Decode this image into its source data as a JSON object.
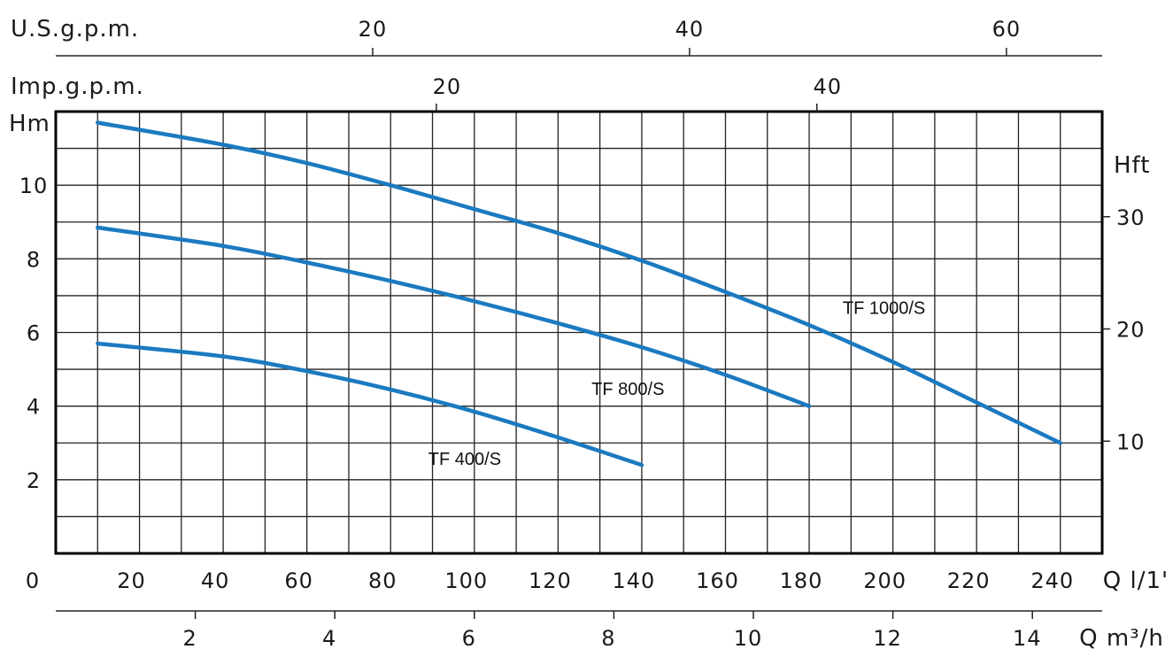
{
  "chart_data": {
    "type": "line",
    "title": "",
    "colors": {
      "curve": "#1b7ac0",
      "grid": "#222222",
      "frame": "#000000",
      "text": "#1a1a1a"
    },
    "grid": true,
    "x": {
      "label": "Q l/1'",
      "range": [
        0,
        250
      ],
      "origin_label": "0",
      "ticks": [
        20,
        40,
        60,
        80,
        100,
        120,
        140,
        160,
        180,
        200,
        220,
        240
      ],
      "grid_step": 10
    },
    "y": {
      "label": "Hm",
      "range": [
        0,
        12
      ],
      "ticks": [
        2,
        4,
        6,
        8,
        10
      ],
      "grid_step": 1
    },
    "x_secondary_m3h": {
      "label": "Q m³/h",
      "ticks": [
        2,
        4,
        6,
        8,
        10,
        12,
        14
      ]
    },
    "x_secondary_usgpm": {
      "label": "U.S.g.p.m.",
      "ticks": [
        20,
        40,
        60
      ]
    },
    "x_secondary_impgpm": {
      "label": "Imp.g.p.m.",
      "ticks": [
        20,
        40
      ]
    },
    "y_secondary_ft": {
      "label": "Hft",
      "ticks": [
        10,
        20,
        30
      ]
    },
    "series": [
      {
        "name": "TF 1000/S",
        "x": [
          10,
          40,
          60,
          80,
          100,
          120,
          140,
          160,
          180,
          200,
          220,
          240
        ],
        "y": [
          11.7,
          11.1,
          10.6,
          10.0,
          9.35,
          8.7,
          7.95,
          7.1,
          6.2,
          5.2,
          4.1,
          3.0
        ],
        "label_at": [
          188,
          6.5
        ]
      },
      {
        "name": "TF 800/S",
        "x": [
          10,
          40,
          60,
          80,
          100,
          120,
          140,
          160,
          180
        ],
        "y": [
          8.85,
          8.35,
          7.9,
          7.4,
          6.85,
          6.25,
          5.6,
          4.85,
          4.0
        ],
        "label_at": [
          128,
          4.3
        ]
      },
      {
        "name": "TF 400/S",
        "x": [
          10,
          40,
          60,
          80,
          100,
          120,
          140
        ],
        "y": [
          5.7,
          5.35,
          4.95,
          4.45,
          3.85,
          3.15,
          2.4
        ],
        "label_at": [
          89,
          2.4
        ]
      }
    ]
  }
}
